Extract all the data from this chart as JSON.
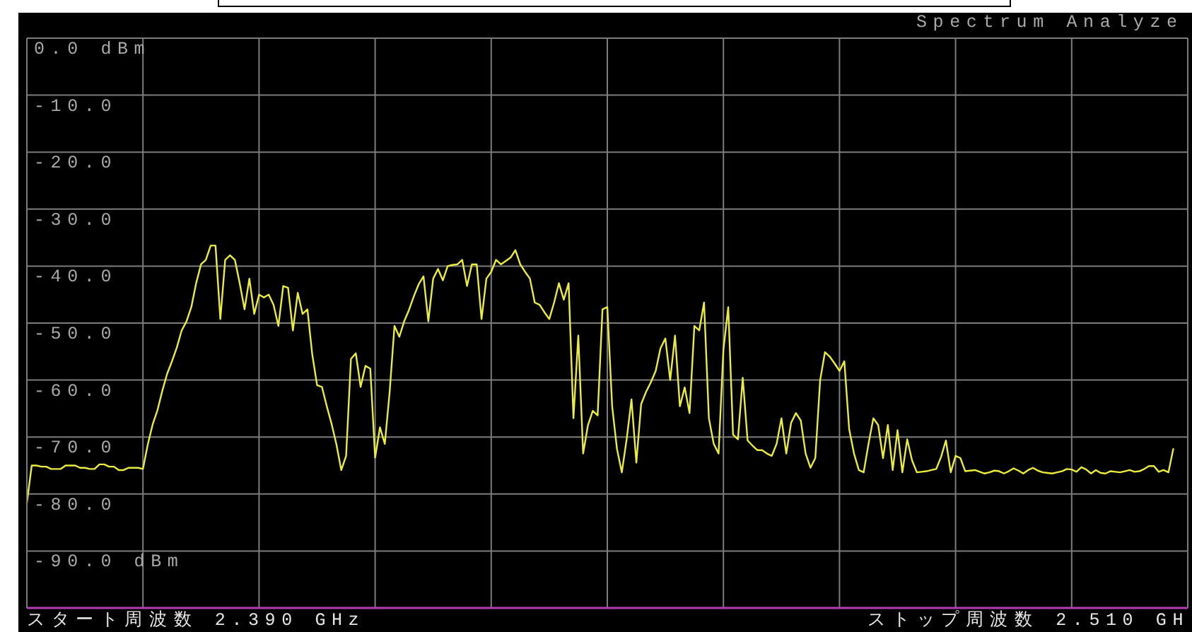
{
  "chart_data": {
    "type": "line",
    "title": "Spectrum Analyze",
    "annotations": [
      "スタート周波数 2.390 GHz",
      "ストップ周波数 2.510 GH"
    ],
    "categories": [
      null,
      null,
      null,
      null,
      null,
      null,
      null,
      null,
      null,
      null,
      null,
      null,
      null,
      null,
      null,
      null,
      null,
      null,
      null,
      null,
      null,
      null,
      null,
      null,
      null,
      null,
      null,
      null,
      null,
      null,
      null,
      null,
      null,
      null,
      null,
      null,
      null,
      null,
      null,
      null,
      null,
      null,
      null,
      null,
      null,
      null,
      null,
      null,
      null,
      null,
      null,
      null,
      null,
      null,
      null,
      null,
      null,
      null,
      null,
      null,
      null,
      null,
      null,
      null,
      null,
      null,
      null,
      null,
      null,
      null,
      null,
      null,
      null,
      null,
      null,
      null,
      null,
      null,
      null,
      null,
      null,
      null,
      null,
      null,
      null,
      null,
      null,
      null,
      null,
      null,
      null,
      null,
      null,
      null,
      null,
      null,
      null,
      null,
      null,
      null,
      null,
      null,
      null,
      null,
      null,
      null,
      null,
      null,
      null,
      null,
      null,
      null,
      null,
      null,
      null,
      null,
      null,
      null,
      null,
      null,
      null,
      null,
      null,
      null,
      null,
      null,
      null,
      null,
      null,
      null,
      null,
      null,
      null,
      null,
      null,
      null,
      null,
      null,
      null,
      null,
      null,
      null,
      null,
      null,
      null,
      null,
      null,
      null,
      null,
      null,
      null,
      null,
      null,
      null,
      null,
      null,
      null,
      null,
      null,
      null,
      null,
      null,
      null,
      null,
      null,
      null,
      null,
      null,
      null,
      null,
      null,
      null,
      null,
      null,
      null,
      null,
      null,
      null,
      null,
      null,
      null,
      null,
      null,
      null,
      null,
      null,
      null,
      null,
      null,
      null,
      null,
      null,
      null,
      null,
      null,
      null,
      null,
      null,
      null,
      null,
      null,
      null,
      null,
      null,
      null,
      null,
      null,
      null,
      null,
      null,
      null,
      null,
      null,
      null,
      null,
      null,
      null,
      null,
      null,
      null,
      null,
      null,
      null,
      null,
      null,
      null,
      null,
      null,
      null,
      null,
      null,
      null,
      null,
      null,
      null,
      null,
      null,
      null,
      null,
      null,
      null
    ],
    "series": [
      {
        "color": "#ecec3c",
        "values": [
          -81.6,
          -75.0,
          -75.0,
          -75.2,
          -75.2,
          -75.6,
          -75.6,
          -75.6,
          -75.0,
          -75.0,
          -75.0,
          -75.4,
          -75.4,
          -75.6,
          -75.6,
          -74.8,
          -74.8,
          -75.2,
          -75.2,
          -75.8,
          -75.8,
          -75.4,
          -75.4,
          -75.4,
          -75.6,
          -71.3,
          -67.8,
          -65.3,
          -61.9,
          -58.9,
          -56.7,
          -54.3,
          -51.3,
          -49.7,
          -47.2,
          -43.0,
          -39.7,
          -38.9,
          -36.4,
          -36.4,
          -49.3,
          -38.9,
          -38.1,
          -38.9,
          -43.0,
          -47.6,
          -42.2,
          -48.4,
          -45.0,
          -45.5,
          -45.0,
          -46.8,
          -50.5,
          -43.5,
          -43.8,
          -51.3,
          -44.7,
          -48.4,
          -47.6,
          -55.5,
          -60.9,
          -61.2,
          -64.6,
          -67.7,
          -71.3,
          -75.8,
          -73.3,
          -56.3,
          -55.3,
          -61.2,
          -57.5,
          -58.0,
          -73.6,
          -68.3,
          -71.2,
          -62.1,
          -50.5,
          -52.4,
          -49.7,
          -47.7,
          -45.3,
          -43.2,
          -41.8,
          -49.7,
          -42.2,
          -40.5,
          -42.5,
          -40.0,
          -39.8,
          -39.7,
          -38.9,
          -43.5,
          -39.7,
          -39.7,
          -49.3,
          -42.2,
          -41.0,
          -38.9,
          -39.7,
          -39.1,
          -38.5,
          -37.2,
          -39.7,
          -41.0,
          -42.2,
          -46.4,
          -46.8,
          -48.1,
          -49.3,
          -46.4,
          -43.0,
          -45.9,
          -43.0,
          -66.7,
          -52.2,
          -72.9,
          -67.9,
          -65.4,
          -66.2,
          -47.6,
          -47.2,
          -64.6,
          -72.1,
          -76.2,
          -70.4,
          -63.4,
          -74.5,
          -64.2,
          -62.1,
          -60.4,
          -58.4,
          -54.4,
          -52.7,
          -60.0,
          -52.2,
          -64.6,
          -61.3,
          -65.8,
          -50.5,
          -51.3,
          -46.4,
          -66.7,
          -71.2,
          -72.9,
          -54.7,
          -47.2,
          -69.6,
          -70.4,
          -59.6,
          -70.6,
          -71.5,
          -72.3,
          -72.3,
          -72.9,
          -73.3,
          -71.2,
          -66.7,
          -72.9,
          -67.5,
          -65.8,
          -67.1,
          -72.9,
          -75.4,
          -73.7,
          -60.0,
          -55.1,
          -55.9,
          -57.1,
          -58.4,
          -56.7,
          -68.6,
          -72.9,
          -75.8,
          -76.2,
          -71.2,
          -66.7,
          -67.9,
          -73.7,
          -67.9,
          -75.8,
          -68.8,
          -76.2,
          -70.4,
          -74.1,
          -76.2,
          -76.1,
          -76.0,
          -75.8,
          -75.6,
          -73.5,
          -70.6,
          -76.2,
          -73.3,
          -73.7,
          -76.0,
          -75.9,
          -75.8,
          -76.1,
          -76.4,
          -76.2,
          -75.9,
          -76.0,
          -76.4,
          -76.0,
          -75.5,
          -75.9,
          -76.4,
          -75.8,
          -75.4,
          -75.9,
          -76.2,
          -76.3,
          -76.4,
          -76.2,
          -76.0,
          -75.6,
          -75.7,
          -76.1,
          -75.3,
          -75.7,
          -76.4,
          -75.8,
          -76.3,
          -76.4,
          -76.0,
          -76.1,
          -76.2,
          -76.0,
          -75.8,
          -76.1,
          -76.0,
          -75.6,
          -75.1,
          -75.1,
          -76.1,
          -75.8,
          -76.2,
          -72.1,
          null,
          null,
          null
        ]
      }
    ],
    "ylim": [
      -100,
      0
    ],
    "yticks": [
      {
        "value": 0,
        "label": "0.0 dBm"
      },
      {
        "value": -10,
        "label": "-10.0"
      },
      {
        "value": -20,
        "label": "-20.0"
      },
      {
        "value": -30,
        "label": "-30.0"
      },
      {
        "value": -40,
        "label": "-40.0"
      },
      {
        "value": -50,
        "label": "-50.0"
      },
      {
        "value": -60,
        "label": "-60.0"
      },
      {
        "value": -70,
        "label": "-70.0"
      },
      {
        "value": -80,
        "label": "-80.0"
      },
      {
        "value": -90,
        "label": "-90.0 dBm"
      },
      {
        "value": -100,
        "label": null
      }
    ],
    "grid": true,
    "tick_labels": "y"
  }
}
